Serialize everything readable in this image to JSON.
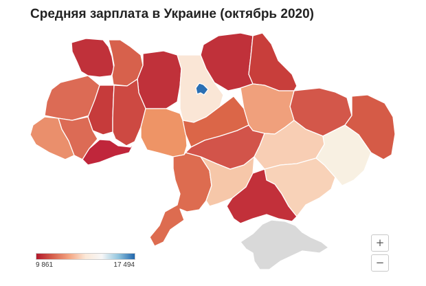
{
  "title": "Средняя зарплата в Украине (октябрь 2020)",
  "legend": {
    "min_label": "9 861",
    "max_label": "17 494",
    "min_value": 9861,
    "max_value": 17494,
    "colors": [
      "#b2182b",
      "#d6604d",
      "#f4a582",
      "#fbe8d8",
      "#f7f7f7",
      "#92c5de",
      "#2166ac"
    ]
  },
  "zoom": {
    "in_label": "+",
    "out_label": "−"
  },
  "colors": {
    "no_data": "#d9d9d9",
    "border": "#ffffff"
  },
  "regions": [
    {
      "id": "volyn",
      "color": "#c0313a"
    },
    {
      "id": "rivne",
      "color": "#d7614c"
    },
    {
      "id": "zhytomyr",
      "color": "#c0313a"
    },
    {
      "id": "kyiv-oblast",
      "color": "#fae6d6"
    },
    {
      "id": "kyiv-city",
      "color": "#2b6fb3"
    },
    {
      "id": "chernihiv",
      "color": "#c0313a"
    },
    {
      "id": "sumy",
      "color": "#c83e3b"
    },
    {
      "id": "kharkiv",
      "color": "#d3574a"
    },
    {
      "id": "luhansk",
      "color": "#d55b47"
    },
    {
      "id": "lviv",
      "color": "#dc6b55"
    },
    {
      "id": "ternopil",
      "color": "#c63b3b"
    },
    {
      "id": "khmelnytskyi",
      "color": "#cd4942"
    },
    {
      "id": "zakarpattia",
      "color": "#ea8f6c"
    },
    {
      "id": "ivano-frankivsk",
      "color": "#dc6b55"
    },
    {
      "id": "chernivtsi",
      "color": "#c0263b"
    },
    {
      "id": "vinnytsia",
      "color": "#ee9466"
    },
    {
      "id": "cherkasy",
      "color": "#db6648"
    },
    {
      "id": "poltava",
      "color": "#f0a07c"
    },
    {
      "id": "kirovohrad",
      "color": "#d2544a"
    },
    {
      "id": "dnipropetrovsk",
      "color": "#f8ceb4"
    },
    {
      "id": "donetsk",
      "color": "#f8f0e2"
    },
    {
      "id": "odesa",
      "color": "#dd6c50"
    },
    {
      "id": "mykolaiv",
      "color": "#f6c7a9"
    },
    {
      "id": "zaporizhzhia",
      "color": "#f8d2b8"
    },
    {
      "id": "kherson",
      "color": "#c2303a"
    },
    {
      "id": "crimea",
      "color": "#d9d9d9"
    }
  ]
}
